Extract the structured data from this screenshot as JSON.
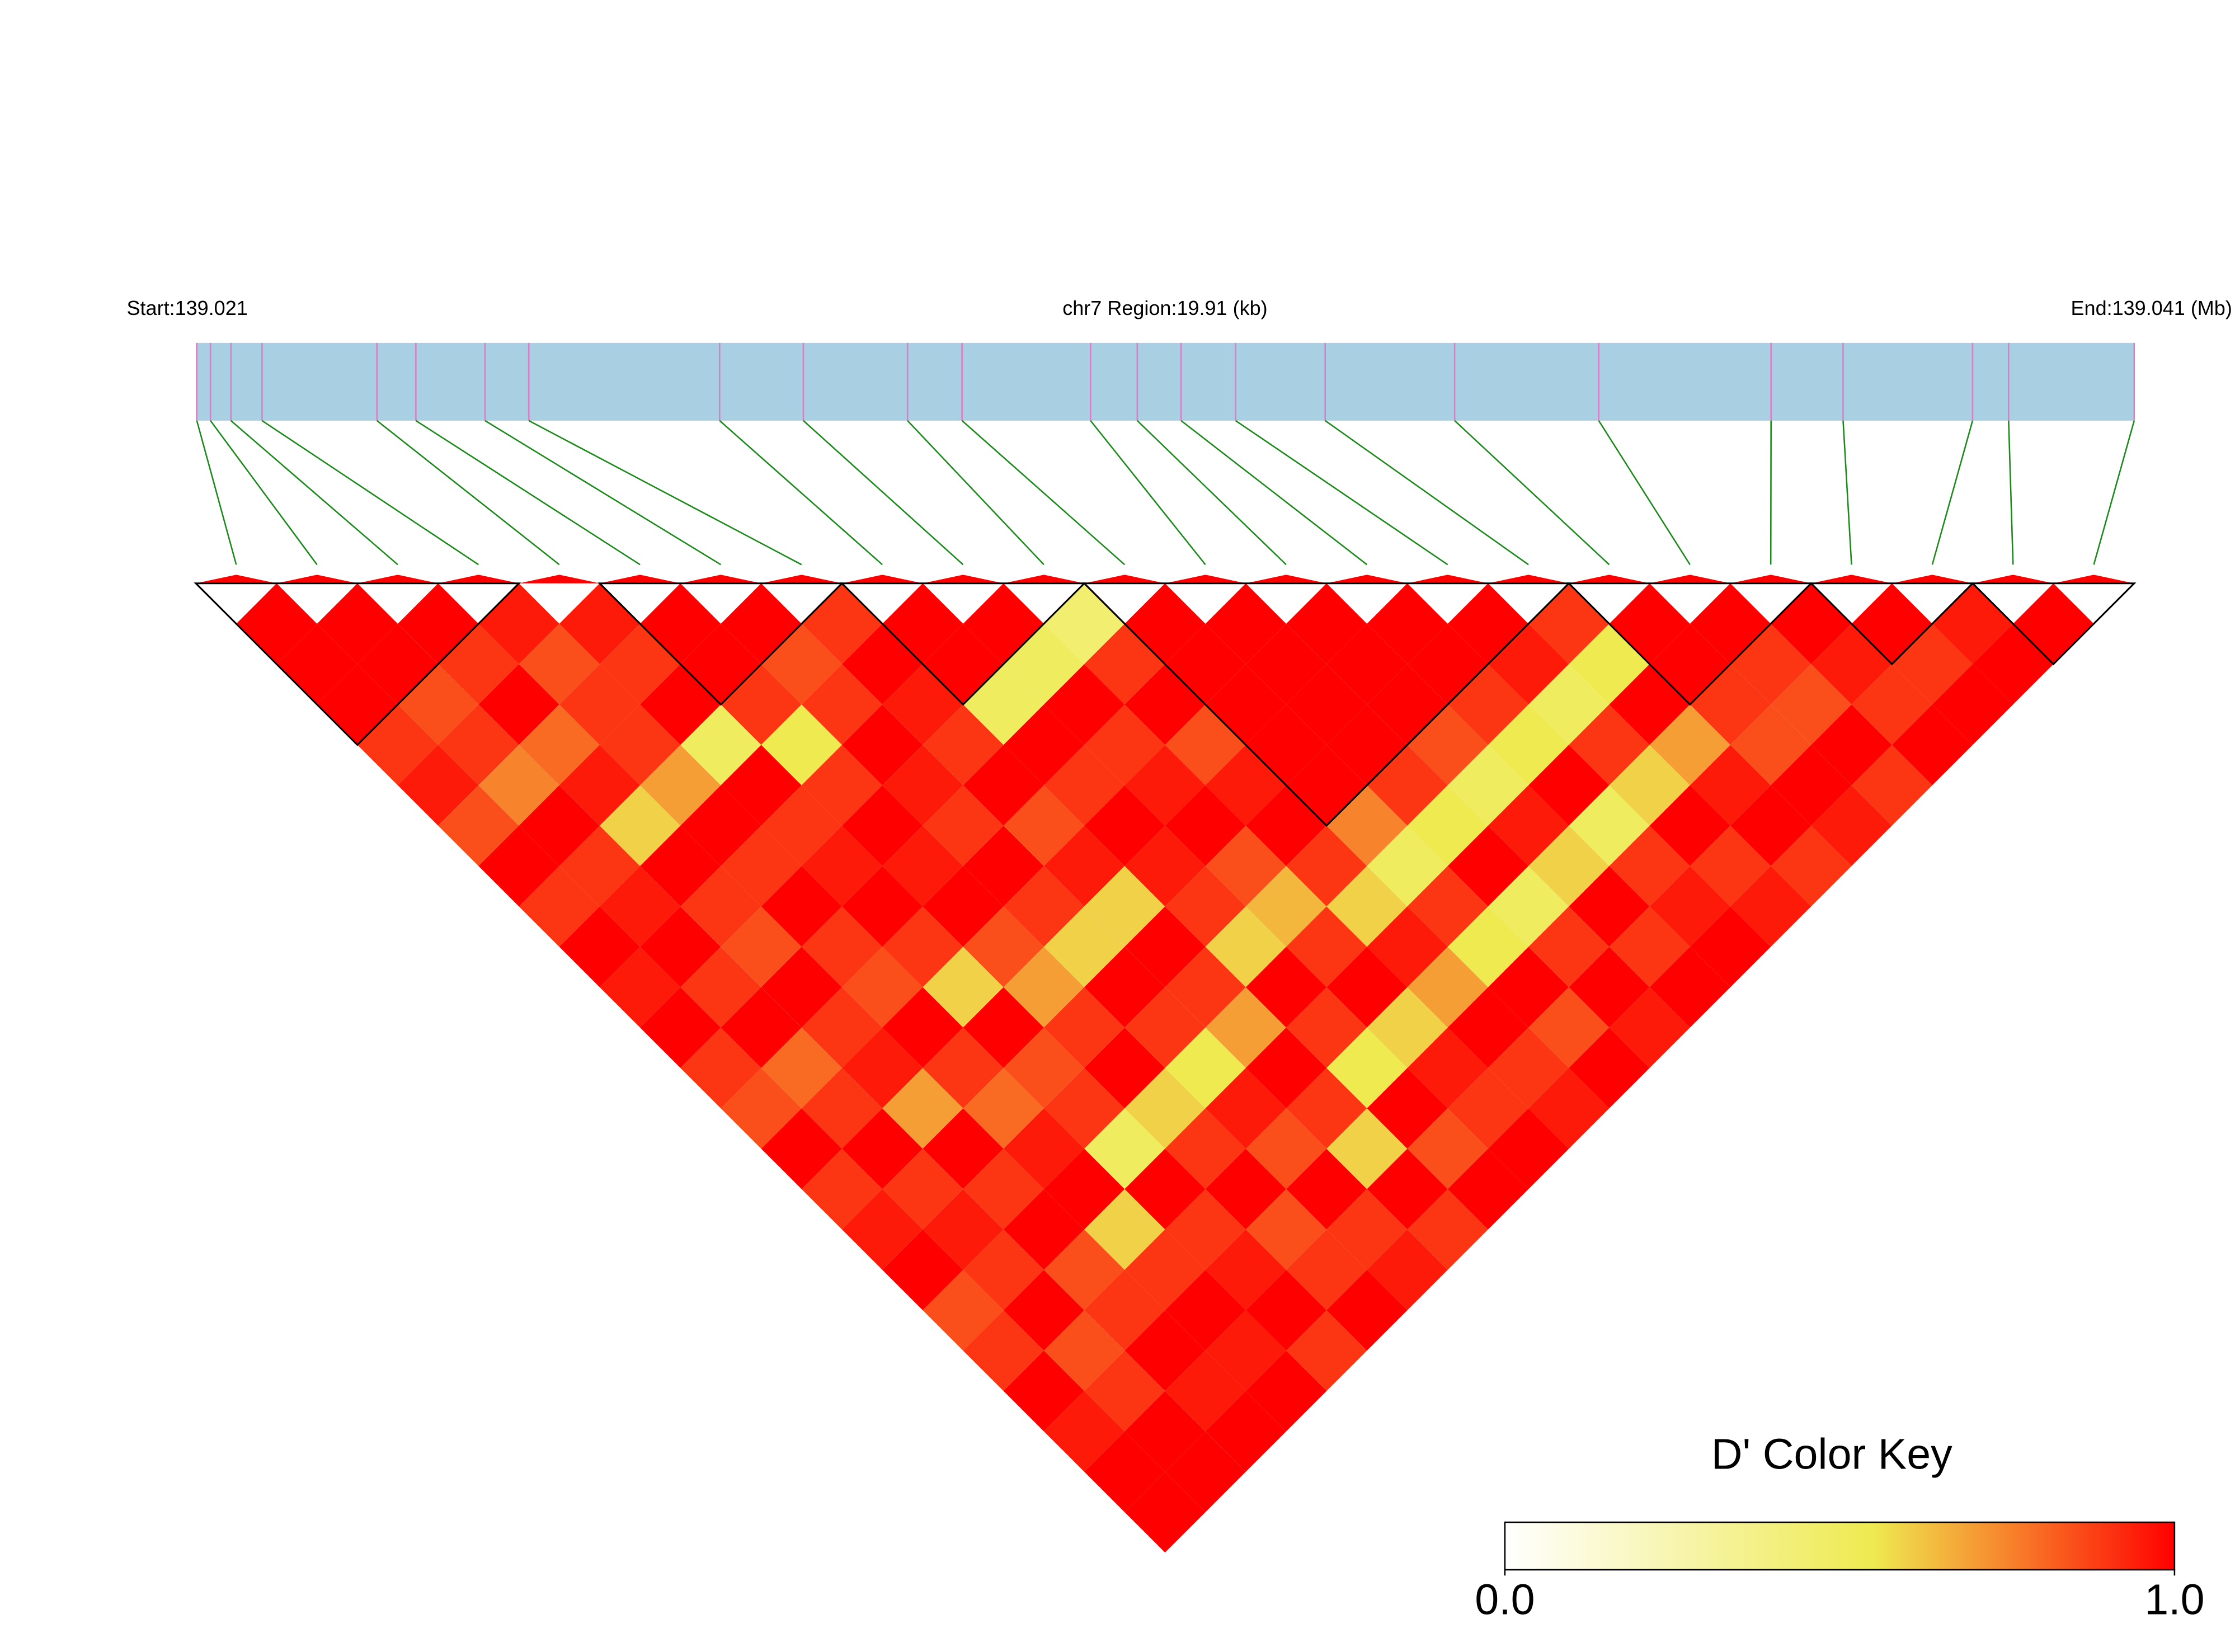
{
  "chart_data": {
    "type": "ld_heatmap",
    "start_label": "Start:139.021",
    "region_label": "chr7 Region:19.91 (kb)",
    "end_label": "End:139.041 (Mb)",
    "xlim": [
      139.021,
      139.04091
    ],
    "snp_positions": [
      139.02101,
      139.02115,
      139.02136,
      139.02168,
      139.02286,
      139.02326,
      139.02397,
      139.02442,
      139.02638,
      139.02724,
      139.02831,
      139.02887,
      139.03019,
      139.03067,
      139.03112,
      139.03168,
      139.0326,
      139.03393,
      139.03541,
      139.03718,
      139.03792,
      139.03925,
      139.03962,
      139.04091
    ],
    "dprime": [
      [
        1,
        1,
        1,
        0.9,
        0.95,
        0.85,
        1,
        0.9,
        1,
        0.95,
        1,
        0.9,
        0.85,
        1,
        0.9,
        0.95,
        1,
        0.85,
        0.9,
        1,
        0.95,
        1,
        1
      ],
      [
        1,
        1,
        0.85,
        0.9,
        0.75,
        1,
        0.9,
        0.95,
        1,
        0.9,
        1,
        0.8,
        0.9,
        1,
        0.9,
        0.95,
        0.9,
        1,
        0.85,
        0.9,
        1,
        1
      ],
      [
        1,
        0.9,
        1,
        0.8,
        0.95,
        0.6,
        1,
        0.9,
        0.85,
        1,
        0.9,
        0.95,
        0.7,
        1,
        0.9,
        1,
        0.85,
        0.9,
        1,
        0.95,
        1
      ],
      [
        0.95,
        0.85,
        0.9,
        0.9,
        0.7,
        1,
        0.9,
        1,
        0.9,
        0.85,
        1,
        0.9,
        0.8,
        0.95,
        1,
        0.6,
        0.9,
        1,
        0.95,
        1
      ],
      [
        0.95,
        0.9,
        1,
        0.5,
        1,
        0.9,
        0.95,
        1,
        0.9,
        0.6,
        1,
        0.85,
        0.9,
        0.5,
        1,
        0.9,
        0.95,
        1,
        0.9
      ],
      [
        1,
        1,
        0.9,
        0.55,
        0.9,
        1,
        0.95,
        1,
        0.85,
        0.7,
        0.9,
        1,
        0.6,
        0.9,
        1,
        0.85,
        0.9,
        1
      ],
      [
        1,
        0.85,
        0.9,
        1,
        0.95,
        0.9,
        1,
        0.9,
        0.6,
        1,
        0.9,
        0.55,
        0.95,
        0.85,
        1,
        0.9,
        0.95
      ],
      [
        0.9,
        1,
        0.95,
        0.9,
        1,
        0.85,
        0.95,
        0.6,
        1,
        0.9,
        0.7,
        1,
        0.9,
        0.6,
        1,
        0.9
      ],
      [
        1,
        1,
        0.5,
        1,
        0.9,
        1,
        0.95,
        0.9,
        0.6,
        1,
        0.9,
        0.55,
        1,
        0.85,
        1
      ],
      [
        1,
        0.5,
        1,
        0.9,
        0.95,
        1,
        0.85,
        0.65,
        0.9,
        1,
        0.6,
        0.95,
        0.9,
        1
      ],
      [
        0.45,
        0.9,
        1,
        0.85,
        0.95,
        1,
        0.9,
        0.6,
        0.95,
        0.7,
        1,
        0.9,
        0.95
      ],
      [
        1,
        1,
        1,
        1,
        1,
        0.75,
        0.5,
        0.9,
        0.55,
        1,
        0.85,
        1
      ],
      [
        1,
        1,
        1,
        1,
        0.9,
        0.55,
        1,
        0.5,
        0.9,
        1,
        0.95
      ],
      [
        1,
        1,
        1,
        0.85,
        0.5,
        0.95,
        0.6,
        1,
        0.9,
        1
      ],
      [
        1,
        1,
        0.9,
        0.55,
        1,
        0.5,
        0.9,
        0.95,
        1
      ],
      [
        1,
        0.95,
        0.5,
        0.9,
        0.6,
        1,
        0.9,
        0.95
      ],
      [
        0.9,
        0.55,
        1,
        0.7,
        0.95,
        1,
        0.9
      ],
      [
        1,
        1,
        0.9,
        0.85,
        1,
        0.95
      ],
      [
        1,
        0.9,
        0.85,
        1,
        0.9
      ],
      [
        1,
        0.95,
        0.9,
        1
      ],
      [
        1,
        0.9,
        1
      ],
      [
        0.95,
        1
      ],
      [
        1
      ]
    ],
    "blocks": [
      [
        0,
        3
      ],
      [
        5,
        7
      ],
      [
        8,
        10
      ],
      [
        11,
        16
      ],
      [
        17,
        19
      ],
      [
        20,
        21
      ],
      [
        22,
        23
      ]
    ],
    "bar_color": "#a8cfe2",
    "snp_tick_color": "#e07cc6",
    "connector_color": "#1b8a1b",
    "colorkey_title": "D' Color Key",
    "colorkey_lim": [
      0,
      1
    ],
    "colorkey_ticks": [
      {
        "value": 0,
        "label": "0.0"
      },
      {
        "value": 1,
        "label": "1.0"
      }
    ],
    "colormap": [
      {
        "value": 0,
        "color": "#ffffff"
      },
      {
        "value": 0.55,
        "color": "#eeea50"
      },
      {
        "value": 0.75,
        "color": "#f7842c"
      },
      {
        "value": 1,
        "color": "#ff0000"
      }
    ]
  }
}
